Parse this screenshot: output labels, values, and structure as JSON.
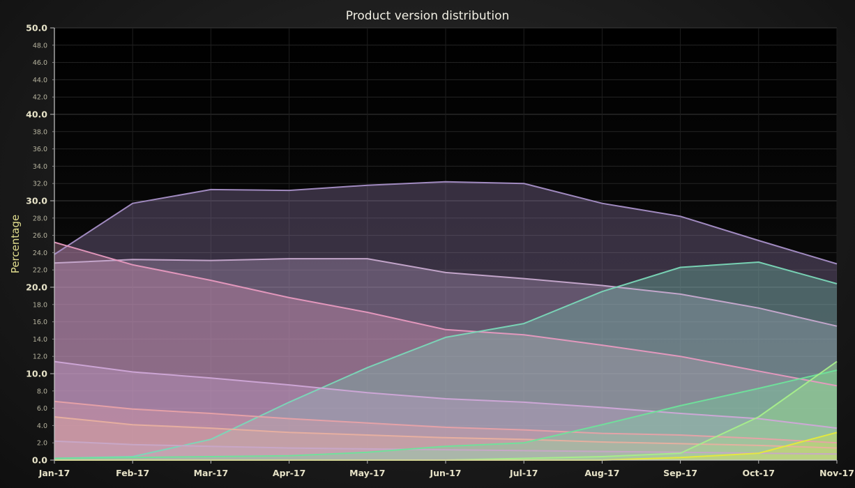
{
  "chart_data": {
    "type": "area",
    "title": "Product version distribution",
    "xlabel": "",
    "ylabel": "Percentage",
    "categories": [
      "Jan-17",
      "Feb-17",
      "Mar-17",
      "Apr-17",
      "May-17",
      "Jun-17",
      "Jul-17",
      "Aug-17",
      "Sep-17",
      "Oct-17",
      "Nov-17"
    ],
    "ylim": [
      0,
      50
    ],
    "y_major_ticks": [
      "0.0",
      "10.0",
      "20.0",
      "30.0",
      "40.0",
      "50.0"
    ],
    "y_minor_ticks": [
      "2.0",
      "4.0",
      "6.0",
      "8.0",
      "12.0",
      "14.0",
      "16.0",
      "18.0",
      "22.0",
      "24.0",
      "26.0",
      "28.0",
      "32.0",
      "34.0",
      "36.0",
      "38.0",
      "42.0",
      "44.0",
      "46.0",
      "48.0"
    ],
    "grid": true,
    "legend": "none",
    "series": [
      {
        "color": "#a890c8",
        "values": [
          23.8,
          29.7,
          31.3,
          31.2,
          31.8,
          32.2,
          32.0,
          29.7,
          28.2,
          25.4,
          22.7
        ]
      },
      {
        "color": "#c8aad0",
        "values": [
          22.8,
          23.2,
          23.1,
          23.3,
          23.3,
          21.7,
          21.0,
          20.2,
          19.2,
          17.6,
          15.5
        ]
      },
      {
        "color": "#e89ac0",
        "values": [
          25.2,
          22.6,
          20.8,
          18.8,
          17.1,
          15.1,
          14.5,
          13.3,
          12.0,
          10.3,
          8.6
        ]
      },
      {
        "color": "#7ad8b8",
        "values": [
          0.2,
          0.4,
          2.4,
          6.7,
          10.7,
          14.2,
          15.8,
          19.5,
          22.3,
          22.9,
          20.4
        ]
      },
      {
        "color": "#d0a8d8",
        "values": [
          11.4,
          10.2,
          9.5,
          8.7,
          7.8,
          7.1,
          6.7,
          6.1,
          5.4,
          4.8,
          3.7
        ]
      },
      {
        "color": "#e8a2a8",
        "values": [
          6.8,
          5.9,
          5.4,
          4.8,
          4.3,
          3.8,
          3.5,
          3.1,
          2.9,
          2.5,
          2.0
        ]
      },
      {
        "color": "#e8b0a0",
        "values": [
          5.0,
          4.1,
          3.7,
          3.2,
          2.9,
          2.6,
          2.4,
          2.1,
          1.9,
          1.7,
          1.4
        ]
      },
      {
        "color": "#c8a8c8",
        "values": [
          2.2,
          1.8,
          1.6,
          1.4,
          1.3,
          1.2,
          1.1,
          1.0,
          0.9,
          0.8,
          0.7
        ]
      },
      {
        "color": "#6ee39a",
        "values": [
          0.2,
          0.3,
          0.4,
          0.5,
          0.9,
          1.6,
          2.0,
          4.1,
          6.3,
          8.3,
          10.4
        ]
      },
      {
        "color": "#a6ef8a",
        "values": [
          0.0,
          0.0,
          0.0,
          0.0,
          0.0,
          0.0,
          0.2,
          0.4,
          0.8,
          5.0,
          11.4
        ]
      },
      {
        "color": "#e6ea3a",
        "values": [
          0.0,
          0.0,
          0.0,
          0.0,
          0.0,
          0.0,
          0.0,
          0.0,
          0.3,
          0.8,
          3.2
        ]
      }
    ]
  }
}
